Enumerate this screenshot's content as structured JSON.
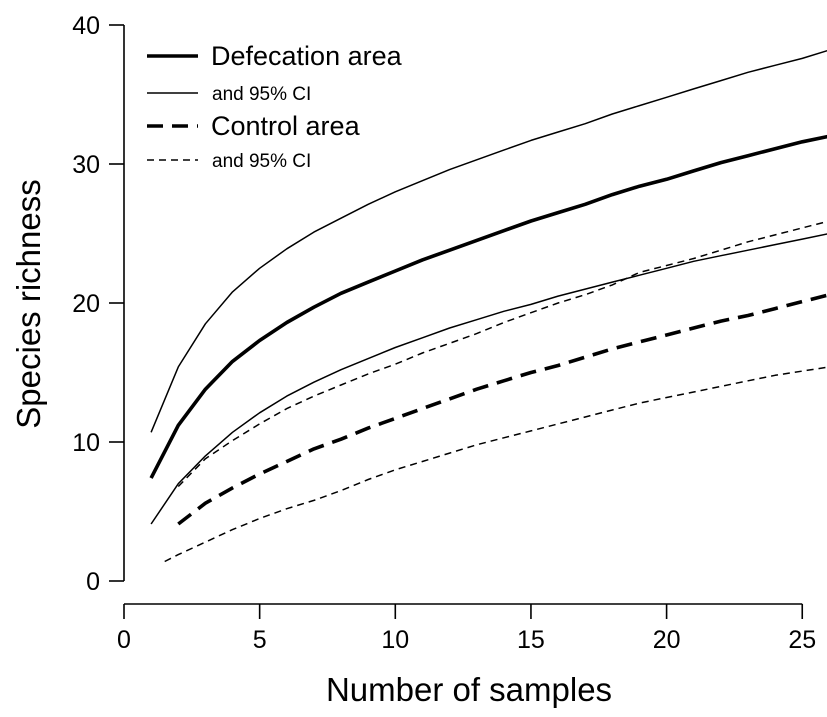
{
  "chart_data": {
    "type": "line",
    "xlabel": "Number of samples",
    "ylabel": "Species richness",
    "xlim": [
      0,
      26
    ],
    "ylim": [
      0,
      40
    ],
    "x_ticks": [
      "0",
      "5",
      "10",
      "15",
      "20",
      "25"
    ],
    "y_ticks": [
      "0",
      "10",
      "20",
      "30",
      "40"
    ],
    "grid": false,
    "legend_position": "top-left",
    "legend": [
      {
        "label": "Defecation area",
        "style": "solid-thick"
      },
      {
        "label": "and 95% CI",
        "style": "solid-thin"
      },
      {
        "label": "Control area",
        "style": "dashed-thick"
      },
      {
        "label": "and 95% CI",
        "style": "dashed-thin"
      }
    ],
    "series": [
      {
        "style": "solid-thick",
        "x": [
          1,
          2,
          3,
          4,
          5,
          6,
          7,
          8,
          9,
          10,
          11,
          12,
          13,
          14,
          15,
          16,
          17,
          18,
          19,
          20,
          21,
          22,
          23,
          24,
          25,
          26
        ],
        "values": [
          7.4,
          11.2,
          13.8,
          15.8,
          17.3,
          18.6,
          19.7,
          20.7,
          21.5,
          22.3,
          23.1,
          23.8,
          24.5,
          25.2,
          25.9,
          26.5,
          27.1,
          27.8,
          28.4,
          28.9,
          29.5,
          30.1,
          30.6,
          31.1,
          31.6,
          32.0
        ]
      },
      {
        "style": "solid-thin",
        "x": [
          1,
          2,
          3,
          4,
          5,
          6,
          7,
          8,
          9,
          10,
          11,
          12,
          13,
          14,
          15,
          16,
          17,
          18,
          19,
          20,
          21,
          22,
          23,
          24,
          25,
          26
        ],
        "values": [
          10.7,
          15.4,
          18.5,
          20.8,
          22.5,
          23.9,
          25.1,
          26.1,
          27.1,
          28.0,
          28.8,
          29.6,
          30.3,
          31.0,
          31.7,
          32.3,
          32.9,
          33.6,
          34.2,
          34.8,
          35.4,
          36.0,
          36.6,
          37.1,
          37.6,
          38.2
        ]
      },
      {
        "style": "solid-thin",
        "x": [
          1,
          2,
          3,
          4,
          5,
          6,
          7,
          8,
          9,
          10,
          11,
          12,
          13,
          14,
          15,
          16,
          17,
          18,
          19,
          20,
          21,
          22,
          23,
          24,
          25,
          26
        ],
        "values": [
          4.1,
          7.0,
          9.0,
          10.7,
          12.1,
          13.3,
          14.3,
          15.2,
          16.0,
          16.8,
          17.5,
          18.2,
          18.8,
          19.4,
          19.9,
          20.5,
          21.0,
          21.5,
          22.0,
          22.5,
          23.0,
          23.4,
          23.8,
          24.2,
          24.6,
          25.0
        ]
      },
      {
        "style": "dashed-thick",
        "x": [
          2,
          3,
          4,
          5,
          6,
          7,
          8,
          9,
          10,
          11,
          12,
          13,
          14,
          15,
          16,
          17,
          18,
          19,
          20,
          21,
          22,
          23,
          24,
          25,
          26
        ],
        "values": [
          4.1,
          5.6,
          6.7,
          7.7,
          8.6,
          9.5,
          10.2,
          11.0,
          11.7,
          12.4,
          13.1,
          13.8,
          14.4,
          15.0,
          15.5,
          16.1,
          16.7,
          17.2,
          17.7,
          18.2,
          18.7,
          19.1,
          19.6,
          20.1,
          20.6
        ]
      },
      {
        "style": "dashed-thin",
        "x": [
          2,
          3,
          4,
          5,
          6,
          7,
          8,
          9,
          10,
          11,
          12,
          13,
          14,
          15,
          16,
          17,
          18,
          19,
          20,
          21,
          22,
          23,
          24,
          25,
          26
        ],
        "values": [
          6.8,
          8.8,
          10.1,
          11.3,
          12.4,
          13.3,
          14.1,
          14.9,
          15.6,
          16.4,
          17.1,
          17.8,
          18.6,
          19.3,
          20.0,
          20.6,
          21.3,
          22.2,
          22.7,
          23.2,
          23.8,
          24.4,
          24.9,
          25.4,
          25.9
        ]
      },
      {
        "style": "dashed-thin",
        "x": [
          1.5,
          2,
          3,
          4,
          5,
          6,
          7,
          8,
          9,
          10,
          11,
          12,
          13,
          14,
          15,
          16,
          17,
          18,
          19,
          20,
          21,
          22,
          23,
          24,
          25,
          26
        ],
        "values": [
          1.4,
          1.9,
          2.8,
          3.7,
          4.5,
          5.2,
          5.8,
          6.5,
          7.3,
          8.0,
          8.6,
          9.2,
          9.8,
          10.3,
          10.8,
          11.3,
          11.8,
          12.3,
          12.8,
          13.2,
          13.6,
          14.0,
          14.4,
          14.8,
          15.1,
          15.4
        ]
      }
    ]
  }
}
